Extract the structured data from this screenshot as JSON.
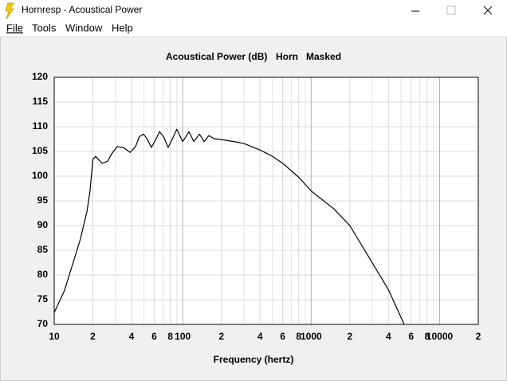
{
  "window": {
    "title": "Hornresp - Acoustical Power",
    "menu": [
      "File",
      "Tools",
      "Window",
      "Help"
    ]
  },
  "chart_data": {
    "type": "line",
    "title": "Acoustical Power (dB)",
    "subtitle": [
      "Horn",
      "Masked"
    ],
    "xlabel": "Frequency (hertz)",
    "x_log": true,
    "grid": true,
    "color": "#000000",
    "xlim": [
      10,
      20000
    ],
    "ylim": [
      70,
      120
    ],
    "yticks": [
      70,
      75,
      80,
      85,
      90,
      95,
      100,
      105,
      110,
      115,
      120
    ],
    "xticks": [
      10,
      {
        "value": 20,
        "label": "2"
      },
      {
        "value": 40,
        "label": "4"
      },
      {
        "value": 60,
        "label": "6"
      },
      {
        "value": 80,
        "label": "8"
      },
      100,
      {
        "value": 200,
        "label": "2"
      },
      {
        "value": 400,
        "label": "4"
      },
      {
        "value": 600,
        "label": "6"
      },
      {
        "value": 800,
        "label": "8"
      },
      1000,
      {
        "value": 2000,
        "label": "2"
      },
      {
        "value": 4000,
        "label": "4"
      },
      {
        "value": 6000,
        "label": "6"
      },
      {
        "value": 8000,
        "label": "8"
      },
      10000,
      {
        "value": 20000,
        "label": "2"
      }
    ],
    "xminor": [
      30,
      50,
      70,
      90,
      300,
      500,
      700,
      900,
      3000,
      5000,
      7000,
      9000
    ],
    "x": [
      10,
      12,
      14,
      16,
      18,
      19,
      20,
      21,
      23.6,
      26,
      28,
      31,
      35,
      39,
      43,
      46,
      49.6,
      53,
      57,
      62,
      66,
      71,
      77,
      83,
      90,
      100,
      106,
      112,
      122,
      135,
      147,
      160,
      175,
      200,
      250,
      300,
      400,
      500,
      600,
      800,
      1000,
      1500,
      2000,
      3000,
      4000,
      5300
    ],
    "series": [
      {
        "name": "Acoustical Power",
        "color": "#000000",
        "values": [
          72.4,
          76.8,
          82.4,
          87.3,
          92.9,
          97,
          103.4,
          104,
          102.6,
          103,
          104.5,
          106,
          105.7,
          104.8,
          106,
          108,
          108.5,
          107.5,
          105.8,
          107.5,
          109,
          108,
          105.8,
          107.5,
          109.5,
          107,
          108,
          109,
          107,
          108.5,
          107,
          108.2,
          107.6,
          107.4,
          107,
          106.6,
          105.3,
          104,
          102.6,
          99.8,
          97,
          93.4,
          90,
          82.4,
          77,
          70
        ]
      }
    ]
  }
}
